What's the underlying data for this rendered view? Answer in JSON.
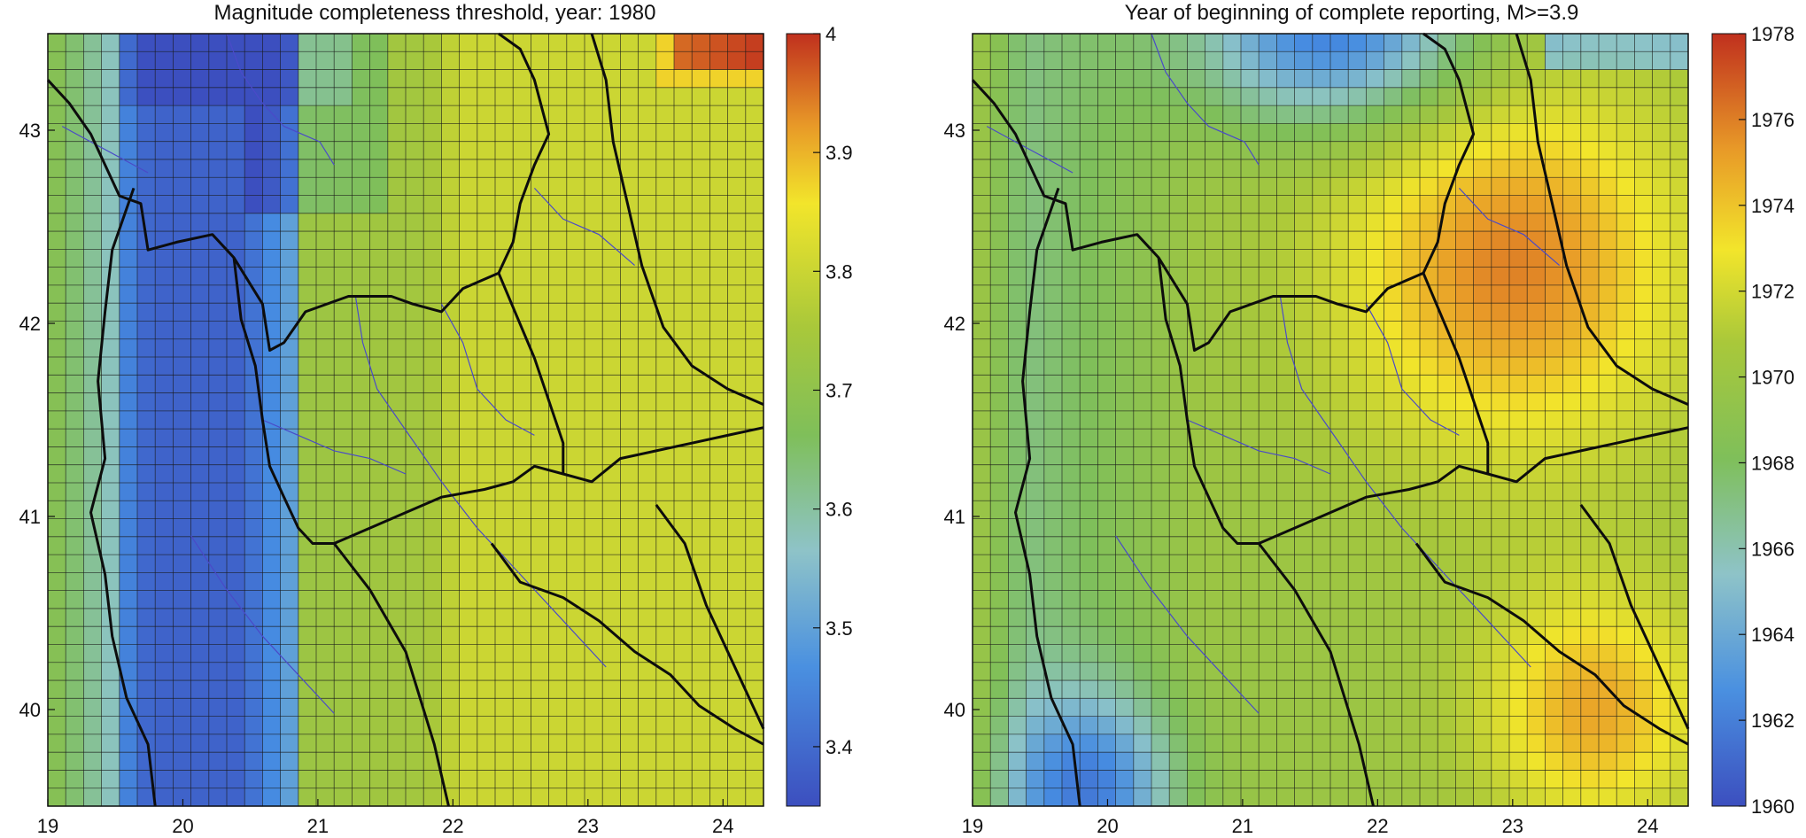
{
  "chart_data": [
    {
      "type": "heatmap",
      "title": "Magnitude completeness threshold, year: 1980",
      "x_ticks": [
        "19",
        "20",
        "21",
        "22",
        "23",
        "24"
      ],
      "y_ticks": [
        "43",
        "42",
        "41",
        "40"
      ],
      "x_values": [
        19,
        20,
        21,
        22,
        23,
        24
      ],
      "y_values": [
        43,
        42,
        41,
        40
      ],
      "xlim": [
        19,
        24.3
      ],
      "ylim": [
        39.5,
        43.5
      ],
      "colorbar": {
        "ticks": [
          "4",
          "3.9",
          "3.8",
          "3.7",
          "3.6",
          "3.5",
          "3.4"
        ],
        "tick_values": [
          4.0,
          3.9,
          3.8,
          3.7,
          3.6,
          3.5,
          3.4
        ],
        "range": [
          3.35,
          4.0
        ],
        "colormap": "jet-like (blue low, red high)"
      },
      "field_description": "Low values (~3.35–3.45, dark blue) along Albania strip ~19.6–20.6 E; rising eastward to ~3.75–3.8 (yellow-green) over most of east; small red patch (~4.0) in top-right corner near 24 E, 43.5 N.",
      "grid": true
    },
    {
      "type": "heatmap",
      "title": "Year of beginning of complete reporting, M>=3.9",
      "x_ticks": [
        "19",
        "20",
        "21",
        "22",
        "23",
        "24"
      ],
      "y_ticks": [
        "43",
        "42",
        "41",
        "40"
      ],
      "x_values": [
        19,
        20,
        21,
        22,
        23,
        24
      ],
      "y_values": [
        43,
        42,
        41,
        40
      ],
      "xlim": [
        19,
        24.3
      ],
      "ylim": [
        39.5,
        43.5
      ],
      "colorbar": {
        "ticks": [
          "1978",
          "1976",
          "1974",
          "1972",
          "1970",
          "1968",
          "1966",
          "1964",
          "1962",
          "1960"
        ],
        "tick_values": [
          1978,
          1976,
          1974,
          1972,
          1970,
          1968,
          1966,
          1964,
          1962,
          1960
        ],
        "range": [
          1960,
          1978
        ],
        "colormap": "jet-like (blue early, red late)"
      },
      "field_description": "Late years (~1976, orange) over central-north region 21.8–24 E, 41.5–43 N and southeast; early years (~1960–1964, blue) at top-center and bottom-left; yellow/green elsewhere.",
      "grid": true
    }
  ],
  "colors": {
    "low": "#3b4cc0",
    "mid": "#8dc63f",
    "high": "#c0301e",
    "border_lines": "#111111",
    "rivers": "#4a4ac8",
    "grid": "#111111"
  }
}
